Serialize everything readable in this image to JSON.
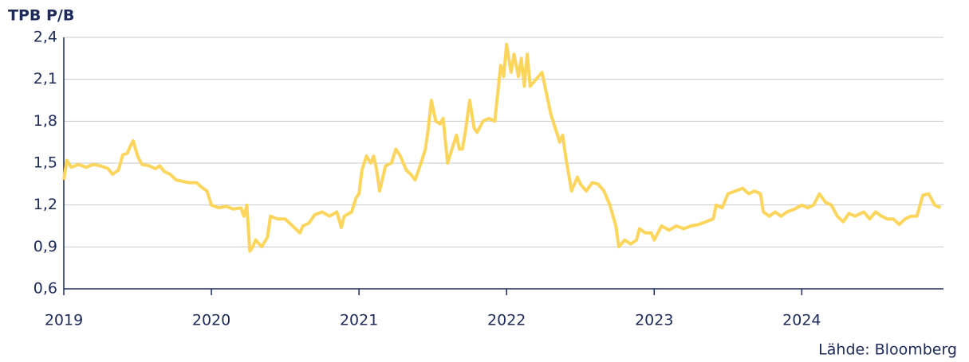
{
  "chart_data": {
    "type": "line",
    "title": "TPB P/B",
    "source": "Lähde: Bloomberg",
    "xlim": [
      2019,
      2024.96
    ],
    "xticks": [
      2019,
      2020,
      2021,
      2022,
      2023,
      2024
    ],
    "ylim": [
      0.6,
      2.4
    ],
    "yticks": [
      {
        "value": 0.6,
        "label": "0,6"
      },
      {
        "value": 0.9,
        "label": "0,9"
      },
      {
        "value": 1.2,
        "label": "1,2"
      },
      {
        "value": 1.5,
        "label": "1,5"
      },
      {
        "value": 1.8,
        "label": "1,8"
      },
      {
        "value": 2.1,
        "label": "2,1"
      },
      {
        "value": 2.4,
        "label": "2,4"
      }
    ],
    "grid": true,
    "series": [
      {
        "name": "TPB P/B",
        "color": "#fcd65c",
        "x": [
          2019.0,
          2019.02,
          2019.05,
          2019.1,
          2019.15,
          2019.2,
          2019.25,
          2019.3,
          2019.33,
          2019.37,
          2019.4,
          2019.43,
          2019.45,
          2019.47,
          2019.5,
          2019.53,
          2019.58,
          2019.62,
          2019.65,
          2019.68,
          2019.72,
          2019.76,
          2019.8,
          2019.85,
          2019.9,
          2019.93,
          2019.97,
          2020.0,
          2020.05,
          2020.1,
          2020.15,
          2020.2,
          2020.22,
          2020.24,
          2020.26,
          2020.28,
          2020.3,
          2020.34,
          2020.38,
          2020.4,
          2020.45,
          2020.5,
          2020.55,
          2020.6,
          2020.62,
          2020.66,
          2020.7,
          2020.75,
          2020.8,
          2020.85,
          2020.88,
          2020.9,
          2020.95,
          2020.98,
          2021.0,
          2021.02,
          2021.05,
          2021.08,
          2021.1,
          2021.12,
          2021.14,
          2021.18,
          2021.22,
          2021.25,
          2021.28,
          2021.32,
          2021.35,
          2021.38,
          2021.42,
          2021.45,
          2021.47,
          2021.49,
          2021.52,
          2021.55,
          2021.57,
          2021.6,
          2021.63,
          2021.66,
          2021.68,
          2021.7,
          2021.72,
          2021.75,
          2021.78,
          2021.8,
          2021.84,
          2021.88,
          2021.92,
          2021.94,
          2021.96,
          2021.98,
          2022.0,
          2022.03,
          2022.05,
          2022.08,
          2022.1,
          2022.12,
          2022.14,
          2022.16,
          2022.2,
          2022.24,
          2022.28,
          2022.3,
          2022.33,
          2022.36,
          2022.38,
          2022.4,
          2022.44,
          2022.48,
          2022.5,
          2022.54,
          2022.58,
          2022.62,
          2022.66,
          2022.7,
          2022.74,
          2022.76,
          2022.8,
          2022.84,
          2022.88,
          2022.9,
          2022.94,
          2022.98,
          2023.0,
          2023.05,
          2023.1,
          2023.15,
          2023.2,
          2023.25,
          2023.3,
          2023.35,
          2023.4,
          2023.42,
          2023.46,
          2023.5,
          2023.55,
          2023.6,
          2023.64,
          2023.68,
          2023.72,
          2023.74,
          2023.78,
          2023.82,
          2023.86,
          2023.9,
          2023.95,
          2024.0,
          2024.04,
          2024.08,
          2024.12,
          2024.16,
          2024.2,
          2024.24,
          2024.28,
          2024.32,
          2024.36,
          2024.42,
          2024.46,
          2024.5,
          2024.54,
          2024.58,
          2024.62,
          2024.66,
          2024.7,
          2024.74,
          2024.78,
          2024.82,
          2024.86,
          2024.9,
          2024.94
        ],
        "values": [
          1.38,
          1.52,
          1.47,
          1.49,
          1.47,
          1.49,
          1.48,
          1.46,
          1.42,
          1.45,
          1.56,
          1.57,
          1.62,
          1.66,
          1.55,
          1.49,
          1.48,
          1.46,
          1.48,
          1.44,
          1.42,
          1.38,
          1.37,
          1.36,
          1.36,
          1.33,
          1.3,
          1.2,
          1.18,
          1.19,
          1.17,
          1.18,
          1.12,
          1.2,
          0.87,
          0.9,
          0.95,
          0.9,
          0.97,
          1.12,
          1.1,
          1.1,
          1.05,
          1.0,
          1.05,
          1.07,
          1.13,
          1.15,
          1.12,
          1.15,
          1.04,
          1.12,
          1.15,
          1.25,
          1.28,
          1.45,
          1.55,
          1.5,
          1.55,
          1.45,
          1.3,
          1.48,
          1.5,
          1.6,
          1.55,
          1.45,
          1.42,
          1.38,
          1.5,
          1.6,
          1.75,
          1.95,
          1.8,
          1.78,
          1.82,
          1.5,
          1.6,
          1.7,
          1.6,
          1.6,
          1.72,
          1.95,
          1.75,
          1.72,
          1.8,
          1.82,
          1.8,
          2.0,
          2.2,
          2.12,
          2.35,
          2.15,
          2.28,
          2.12,
          2.25,
          2.05,
          2.28,
          2.05,
          2.1,
          2.15,
          1.95,
          1.85,
          1.75,
          1.65,
          1.7,
          1.55,
          1.3,
          1.4,
          1.35,
          1.3,
          1.36,
          1.35,
          1.3,
          1.2,
          1.05,
          0.9,
          0.95,
          0.92,
          0.95,
          1.03,
          1.0,
          1.0,
          0.95,
          1.05,
          1.02,
          1.05,
          1.03,
          1.05,
          1.06,
          1.08,
          1.1,
          1.2,
          1.18,
          1.28,
          1.3,
          1.32,
          1.28,
          1.3,
          1.28,
          1.15,
          1.12,
          1.15,
          1.12,
          1.15,
          1.17,
          1.2,
          1.18,
          1.2,
          1.28,
          1.22,
          1.2,
          1.12,
          1.08,
          1.14,
          1.12,
          1.15,
          1.1,
          1.15,
          1.12,
          1.1,
          1.1,
          1.06,
          1.1,
          1.12,
          1.12,
          1.27,
          1.28,
          1.2,
          1.18
        ]
      }
    ]
  }
}
